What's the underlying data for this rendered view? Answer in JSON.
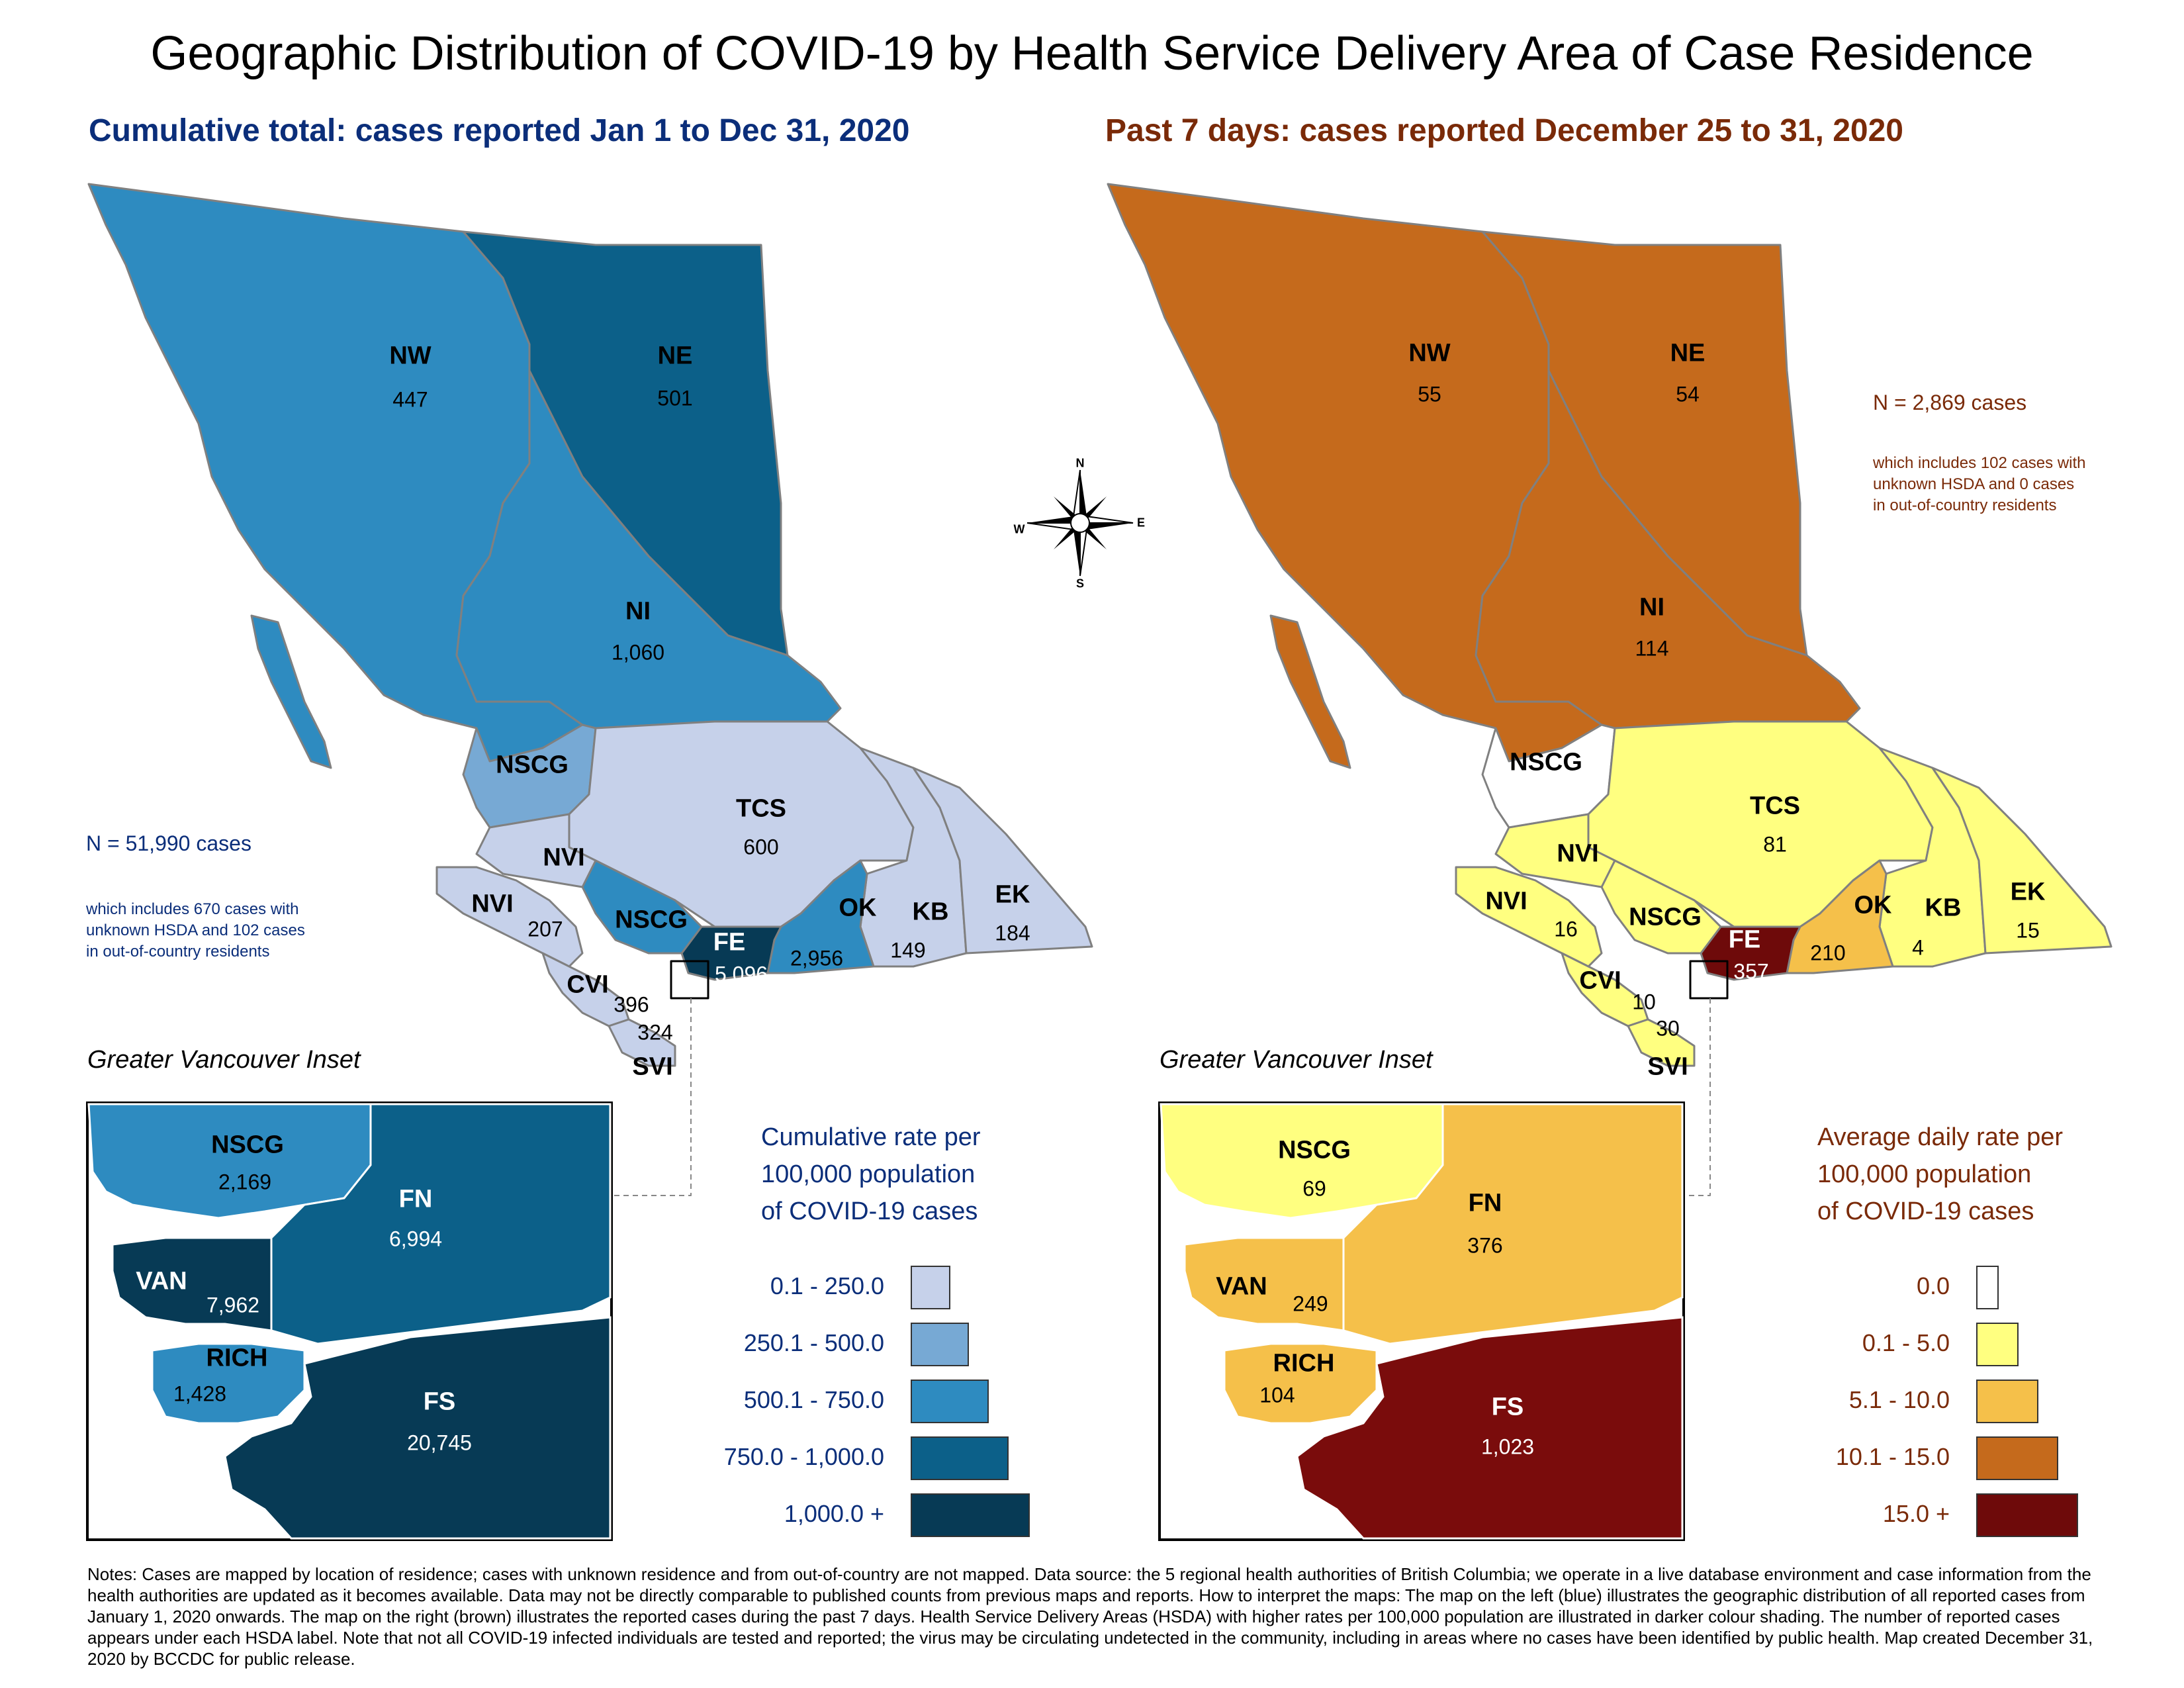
{
  "title": "Geographic Distribution of COVID-19 by Health Service Delivery Area of Case Residence",
  "left_map": {
    "subtitle": "Cumulative total: cases reported Jan 1 to Dec 31, 2020",
    "n_cases": "N = 51,990 cases",
    "n_note": [
      "which includes 670 cases with",
      "unknown HSDA and 102 cases",
      "in out-of-country residents"
    ],
    "regions": {
      "NW": {
        "code": "NW",
        "value": "447"
      },
      "NE": {
        "code": "NE",
        "value": "501"
      },
      "NI": {
        "code": "NI",
        "value": "1,060"
      },
      "NSCG": {
        "code": "NSCG",
        "value": ""
      },
      "TCS": {
        "code": "TCS",
        "value": "600"
      },
      "NVI_upper": {
        "code": "NVI",
        "value": ""
      },
      "NVI": {
        "code": "NVI",
        "value": "207"
      },
      "NSCG_lower": {
        "code": "NSCG",
        "value": ""
      },
      "FE": {
        "code": "FE",
        "value": "5,096"
      },
      "OK": {
        "code": "OK",
        "value": "2,956"
      },
      "KB": {
        "code": "KB",
        "value": "149"
      },
      "EK": {
        "code": "EK",
        "value": "184"
      },
      "CVI": {
        "code": "CVI",
        "value": "396"
      },
      "SVI": {
        "code": "SVI",
        "value": "324"
      }
    },
    "inset_title": "Greater Vancouver Inset",
    "inset": {
      "NSCG": {
        "code": "NSCG",
        "value": "2,169"
      },
      "FN": {
        "code": "FN",
        "value": "6,994"
      },
      "VAN": {
        "code": "VAN",
        "value": "7,962"
      },
      "RICH": {
        "code": "RICH",
        "value": "1,428"
      },
      "FS": {
        "code": "FS",
        "value": "20,745"
      }
    },
    "legend_title": [
      "Cumulative rate per",
      "100,000 population",
      "of COVID-19 cases"
    ],
    "legend": [
      {
        "label": "0.1 - 250.0",
        "color": "#c6d1ea"
      },
      {
        "label": "250.1 - 500.0",
        "color": "#77a9d4"
      },
      {
        "label": "500.1 - 750.0",
        "color": "#2e8bc0"
      },
      {
        "label": "750.0 - 1,000.0",
        "color": "#0c6089"
      },
      {
        "label": "1,000.0 +",
        "color": "#073a55"
      }
    ]
  },
  "right_map": {
    "subtitle": "Past 7 days: cases reported December 25 to 31, 2020",
    "n_cases": "N = 2,869 cases",
    "n_note": [
      "which includes 102 cases with",
      "unknown HSDA and 0 cases",
      "in out-of-country residents"
    ],
    "regions": {
      "NW": {
        "code": "NW",
        "value": "55"
      },
      "NE": {
        "code": "NE",
        "value": "54"
      },
      "NI": {
        "code": "NI",
        "value": "114"
      },
      "NSCG": {
        "code": "NSCG",
        "value": ""
      },
      "TCS": {
        "code": "TCS",
        "value": "81"
      },
      "NVI_upper": {
        "code": "NVI",
        "value": ""
      },
      "NVI": {
        "code": "NVI",
        "value": "16"
      },
      "NSCG_lower": {
        "code": "NSCG",
        "value": ""
      },
      "FE": {
        "code": "FE",
        "value": "357"
      },
      "OK": {
        "code": "OK",
        "value": "210"
      },
      "KB": {
        "code": "KB",
        "value": "4"
      },
      "EK": {
        "code": "EK",
        "value": "15"
      },
      "CVI": {
        "code": "CVI",
        "value": "10"
      },
      "SVI": {
        "code": "SVI",
        "value": "30"
      }
    },
    "inset_title": "Greater Vancouver Inset",
    "inset": {
      "NSCG": {
        "code": "NSCG",
        "value": "69"
      },
      "FN": {
        "code": "FN",
        "value": "376"
      },
      "VAN": {
        "code": "VAN",
        "value": "249"
      },
      "RICH": {
        "code": "RICH",
        "value": "104"
      },
      "FS": {
        "code": "FS",
        "value": "1,023"
      }
    },
    "legend_title": [
      "Average daily rate per",
      "100,000 population",
      "of COVID-19 cases"
    ],
    "legend": [
      {
        "label": "0.0",
        "color": "#ffffff"
      },
      {
        "label": "0.1 - 5.0",
        "color": "#ffff80"
      },
      {
        "label": "5.1 - 10.0",
        "color": "#f5c04a"
      },
      {
        "label": "10.1 - 15.0",
        "color": "#c56a1c"
      },
      {
        "label": "15.0 +",
        "color": "#6e0a0a"
      }
    ]
  },
  "compass": {
    "n": "N",
    "s": "S",
    "e": "E",
    "w": "W"
  },
  "notes": "Notes: Cases are mapped by location of residence; cases with unknown residence and from out-of-country are not mapped. Data source: the 5 regional health authorities of British Columbia; we operate in a live database environment and case information from the health authorities are updated as it becomes available. Data may not be directly comparable to published counts from previous maps and reports. How to interpret the maps: The map on the left (blue) illustrates the geographic distribution of all reported cases from January 1, 2020 onwards. The map on the right (brown) illustrates the reported cases during the past 7 days. Health Service Delivery Areas (HSDA) with higher rates per 100,000 population are illustrated in darker colour shading. The number of reported cases appears under each HSDA label. Note that not all COVID-19 infected individuals are tested and reported; the virus may be circulating undetected in the community, including in areas where no cases have been identified by public health. Map created December 31, 2020 by BCCDC for public release."
}
